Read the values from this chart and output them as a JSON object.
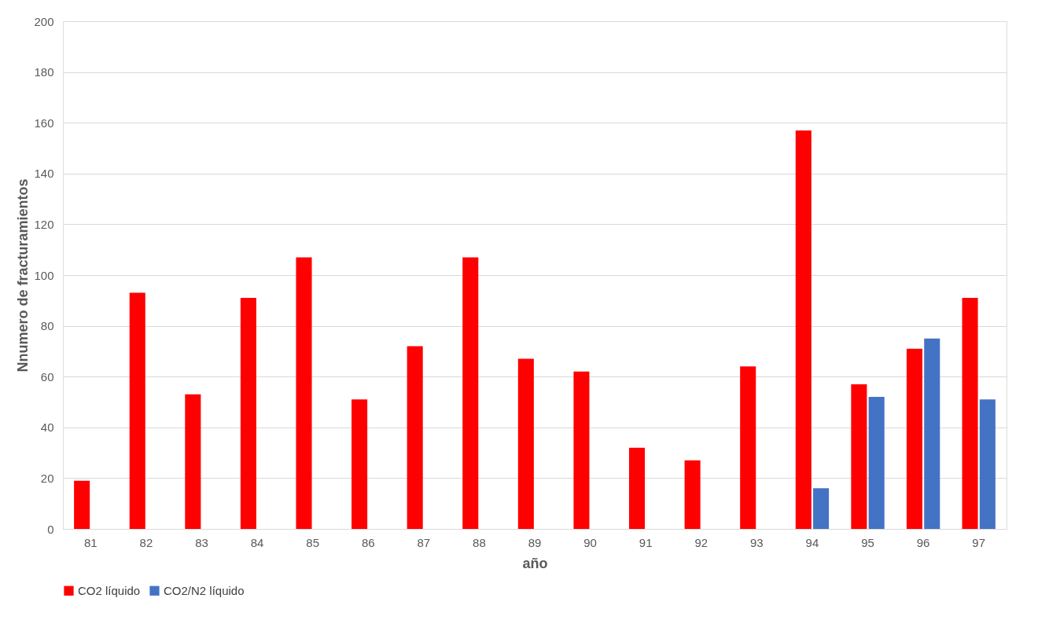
{
  "chart_data": {
    "type": "bar",
    "xlabel": "año",
    "ylabel": "Nnumero de fracturamientos",
    "categories": [
      "81",
      "82",
      "83",
      "84",
      "85",
      "86",
      "87",
      "88",
      "89",
      "90",
      "91",
      "92",
      "93",
      "94",
      "95",
      "96",
      "97"
    ],
    "series": [
      {
        "name": "CO2 líquido",
        "color": "#ff0000",
        "values": [
          19,
          93,
          53,
          91,
          107,
          51,
          72,
          107,
          67,
          62,
          32,
          27,
          64,
          157,
          57,
          71,
          91
        ]
      },
      {
        "name": "CO2/N2 líquido",
        "color": "#4472c4",
        "values": [
          null,
          null,
          null,
          null,
          null,
          null,
          null,
          null,
          null,
          null,
          null,
          null,
          null,
          16,
          52,
          75,
          51
        ]
      }
    ],
    "ylim": [
      0,
      200
    ],
    "yticks": [
      0,
      20,
      40,
      60,
      80,
      100,
      120,
      140,
      160,
      180,
      200
    ],
    "grid": "y",
    "legend": "bottom"
  }
}
